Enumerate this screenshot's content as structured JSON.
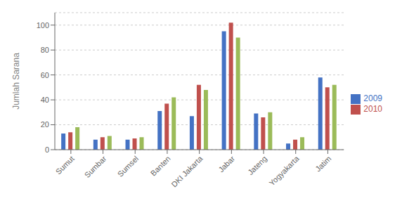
{
  "chart_data": {
    "type": "bar",
    "categories": [
      "Sumut",
      "Sumbar",
      "Sumsel",
      "Banten",
      "DKI Jakarta",
      "Jabar",
      "Jateng",
      "Yogyakarta",
      "Jatim"
    ],
    "series": [
      {
        "name": "2009",
        "color": "#4472C4",
        "values": [
          13,
          8,
          8,
          31,
          27,
          95,
          29,
          5,
          58
        ]
      },
      {
        "name": "2010",
        "color": "#C0504D",
        "values": [
          14,
          10,
          9,
          37,
          52,
          102,
          26,
          8,
          50
        ]
      },
      {
        "color": "#9BBB59",
        "values": [
          18,
          11,
          10,
          42,
          48,
          90,
          30,
          10,
          52
        ]
      }
    ],
    "ylabel": "Jumlah Sarana",
    "ylim": [
      0,
      110
    ],
    "yticks": [
      0,
      20,
      40,
      60,
      80,
      100
    ],
    "grid": true,
    "legend": "right"
  }
}
